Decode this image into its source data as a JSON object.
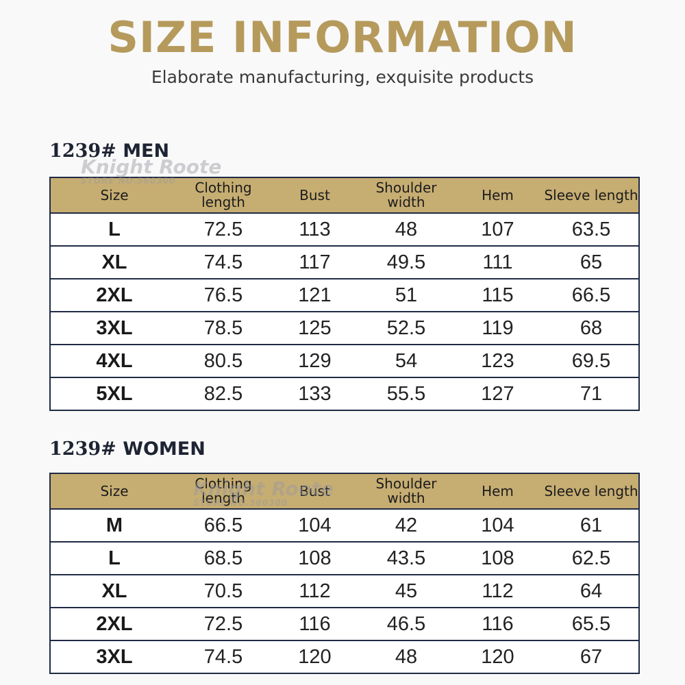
{
  "header": {
    "title": "SIZE INFORMATION",
    "subtitle": "Elaborate manufacturing, exquisite products"
  },
  "columns": [
    "Size",
    "Clothing length",
    "Bust",
    "Shoulder width",
    "Hem",
    "Sleeve length"
  ],
  "men": {
    "heading_num": "1239#",
    "heading_label": "MEN",
    "rows": [
      [
        "L",
        "72.5",
        "113",
        "48",
        "107",
        "63.5"
      ],
      [
        "XL",
        "74.5",
        "117",
        "49.5",
        "111",
        "65"
      ],
      [
        "2XL",
        "76.5",
        "121",
        "51",
        "115",
        "66.5"
      ],
      [
        "3XL",
        "78.5",
        "125",
        "52.5",
        "119",
        "68"
      ],
      [
        "4XL",
        "80.5",
        "129",
        "54",
        "123",
        "69.5"
      ],
      [
        "5XL",
        "82.5",
        "133",
        "55.5",
        "127",
        "71"
      ]
    ]
  },
  "women": {
    "heading_num": "1239#",
    "heading_label": "WOMEN",
    "rows": [
      [
        "M",
        "66.5",
        "104",
        "42",
        "104",
        "61"
      ],
      [
        "L",
        "68.5",
        "108",
        "43.5",
        "108",
        "62.5"
      ],
      [
        "XL",
        "70.5",
        "112",
        "45",
        "112",
        "64"
      ],
      [
        "2XL",
        "72.5",
        "116",
        "46.5",
        "116",
        "65.5"
      ],
      [
        "3XL",
        "74.5",
        "120",
        "48",
        "120",
        "67"
      ]
    ]
  },
  "watermark": {
    "line1": "Knight Roote",
    "line2": "STORE NO.560300"
  },
  "colors": {
    "title_gold": "#b59a5c",
    "header_gold": "#c6ad72",
    "border_navy": "#1f2a44"
  }
}
